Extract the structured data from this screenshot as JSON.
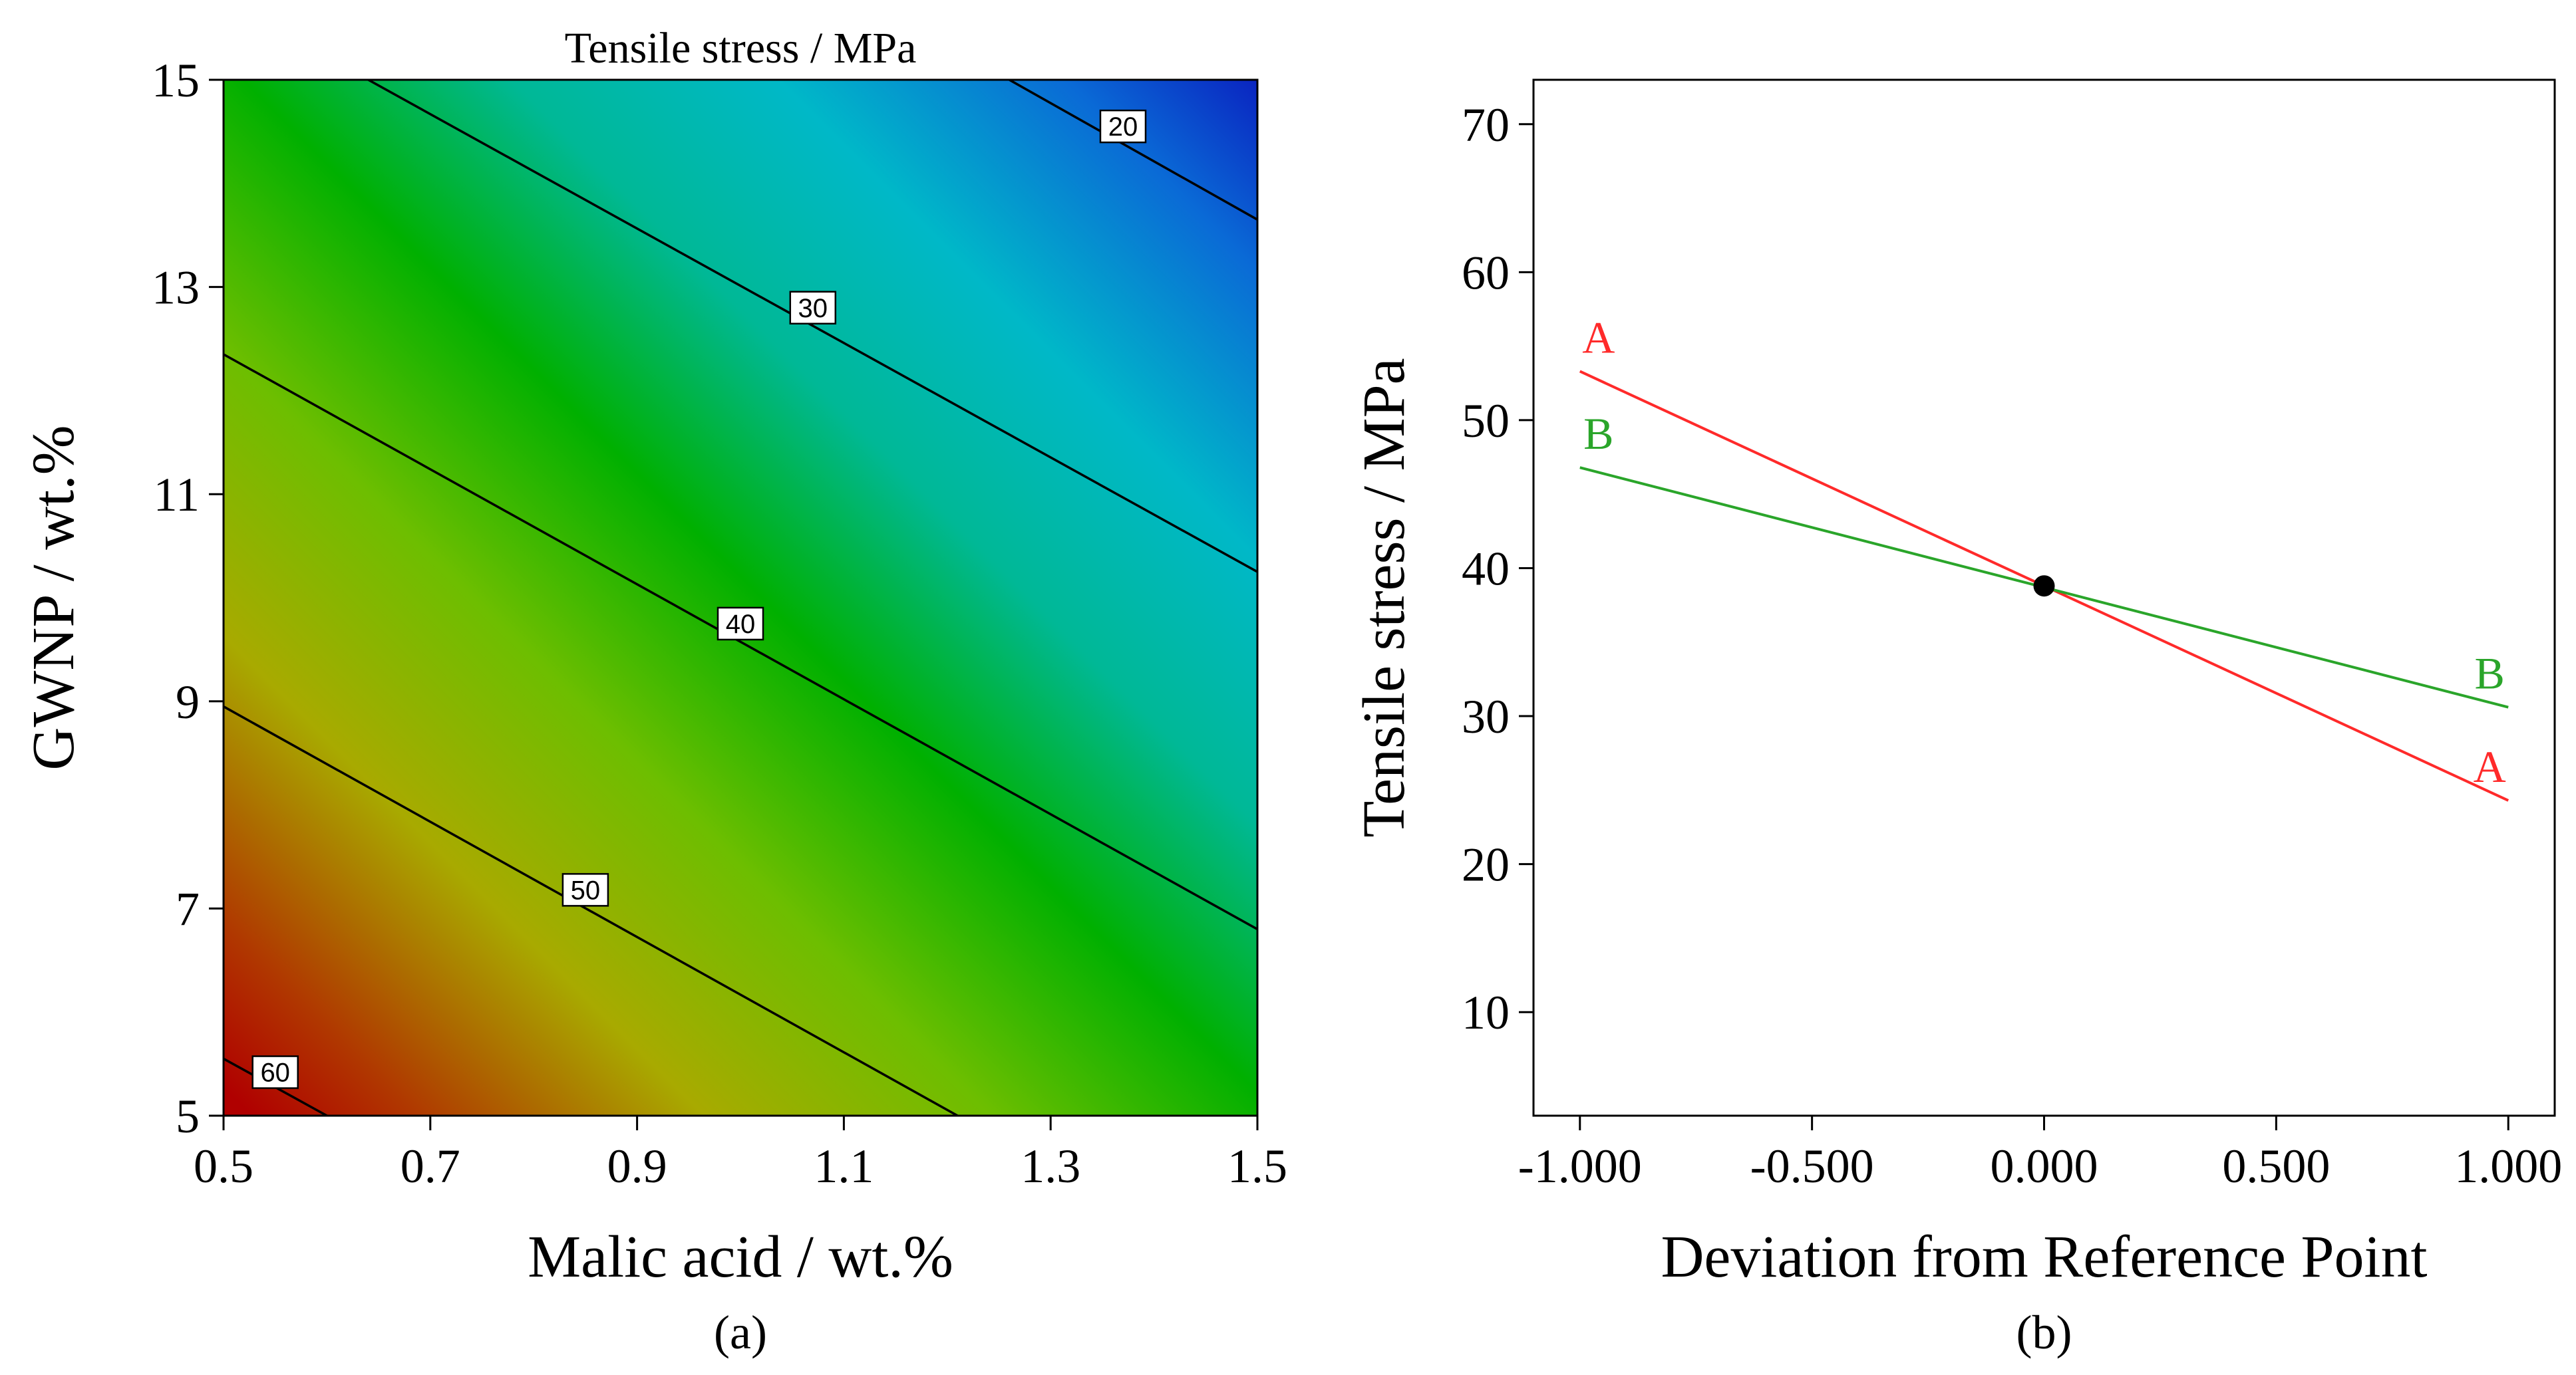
{
  "chart_data": [
    {
      "type": "heatmap",
      "title": "Tensile stress / MPa",
      "xlabel": "Malic acid / wt.%",
      "ylabel": "GWNP / wt.%",
      "xlim": [
        0.5,
        1.5
      ],
      "ylim": [
        5,
        15
      ],
      "xticks": [
        "0.5",
        "0.7",
        "0.9",
        "1.1",
        "1.3",
        "1.5"
      ],
      "yticks": [
        "5",
        "7",
        "9",
        "11",
        "13",
        "15"
      ],
      "colors": {
        "low": "#0a1fbf",
        "mid_low": "#00b8c8",
        "mid": "#00b000",
        "mid_high": "#b4c000",
        "high": "#b00000"
      },
      "contours": [
        {
          "label": "20",
          "points": [
            [
              1.26,
              15.0
            ],
            [
              1.5,
              13.65
            ]
          ],
          "label_at": [
            1.37,
            14.55
          ]
        },
        {
          "label": "30",
          "points": [
            [
              0.64,
              15.0
            ],
            [
              1.5,
              10.25
            ]
          ],
          "label_at": [
            1.07,
            12.8
          ]
        },
        {
          "label": "40",
          "points": [
            [
              0.5,
              12.35
            ],
            [
              1.5,
              6.8
            ]
          ],
          "label_at": [
            1.0,
            9.75
          ]
        },
        {
          "label": "50",
          "points": [
            [
              0.5,
              8.95
            ],
            [
              1.21,
              5.0
            ]
          ],
          "label_at": [
            0.85,
            7.18
          ]
        },
        {
          "label": "60",
          "points": [
            [
              0.5,
              5.55
            ],
            [
              0.6,
              5.0
            ]
          ],
          "label_at": [
            0.55,
            5.42
          ]
        }
      ],
      "panel_label": "(a)"
    },
    {
      "type": "line",
      "xlabel": "Deviation from Reference Point",
      "ylabel": "Tensile stress / MPa",
      "xlim": [
        -1.1,
        1.1
      ],
      "ylim": [
        3,
        73
      ],
      "xticks": [
        "-1.000",
        "-0.500",
        "0.000",
        "0.500",
        "1.000"
      ],
      "xtick_values": [
        -1.0,
        -0.5,
        0.0,
        0.5,
        1.0
      ],
      "yticks": [
        "10",
        "20",
        "30",
        "40",
        "50",
        "60",
        "70"
      ],
      "ytick_values": [
        10,
        20,
        30,
        40,
        50,
        60,
        70
      ],
      "series": [
        {
          "name": "A",
          "color": "#ff2a2a",
          "x": [
            -1.0,
            1.0
          ],
          "y": [
            53.3,
            24.3
          ]
        },
        {
          "name": "B",
          "color": "#2aa52a",
          "x": [
            -1.0,
            1.0
          ],
          "y": [
            46.8,
            30.6
          ]
        }
      ],
      "reference_point": {
        "x": 0.0,
        "y": 38.8
      },
      "panel_label": "(b)"
    }
  ]
}
